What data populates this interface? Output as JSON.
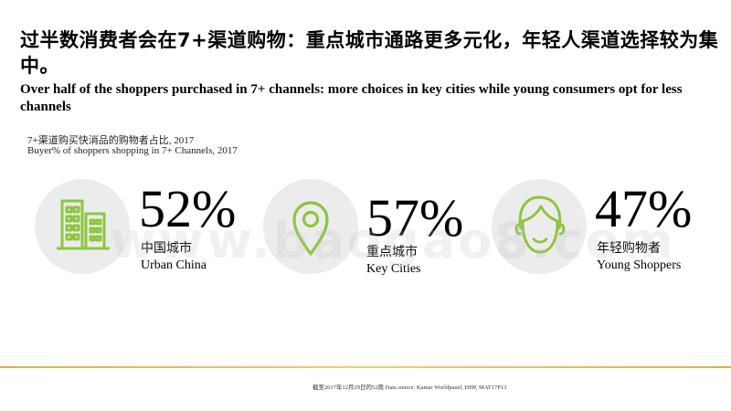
{
  "header": {
    "title_zh": "过半数消费者会在7+渠道购物：重点城市通路更多元化，年轻人渠道选择较为集中。",
    "title_en": "Over half of the shoppers purchased in 7+ channels: more choices in key cities while young consumers opt for less channels",
    "subtitle_zh": "7+渠道购买快消品的购物者占比, 2017",
    "subtitle_en": "Buyer% of shoppers shopping in 7+ Channels, 2017"
  },
  "colors": {
    "accent": "#8cc63f",
    "circle_bg": "#ececec",
    "gold_line": "#d8b24a"
  },
  "chart_data": {
    "type": "table",
    "title": "7+渠道购买快消品的购物者占比, 2017",
    "subtitle": "Buyer% of shoppers shopping in 7+ Channels, 2017",
    "unit": "%",
    "categories": [
      "中国城市 Urban China",
      "重点城市 Key Cities",
      "年轻购物者 Young Shoppers"
    ],
    "values": [
      52,
      57,
      47
    ],
    "items": [
      {
        "icon": "buildings-icon",
        "value_label": "52%",
        "label_zh": "中国城市",
        "label_en": "Urban China",
        "value": 52
      },
      {
        "icon": "map-pin-icon",
        "value_label": "57%",
        "label_zh": "重点城市",
        "label_en": "Key Cities",
        "value": 57
      },
      {
        "icon": "young-person-icon",
        "value_label": "47%",
        "label_zh": "年轻购物者",
        "label_en": "Young Shoppers",
        "value": 47
      }
    ]
  },
  "watermark": "www.baogao8.com",
  "footnote": "截至2017年12月29日的52周    Data source: Kantar Worldpanel, HHP, MAT17P13"
}
